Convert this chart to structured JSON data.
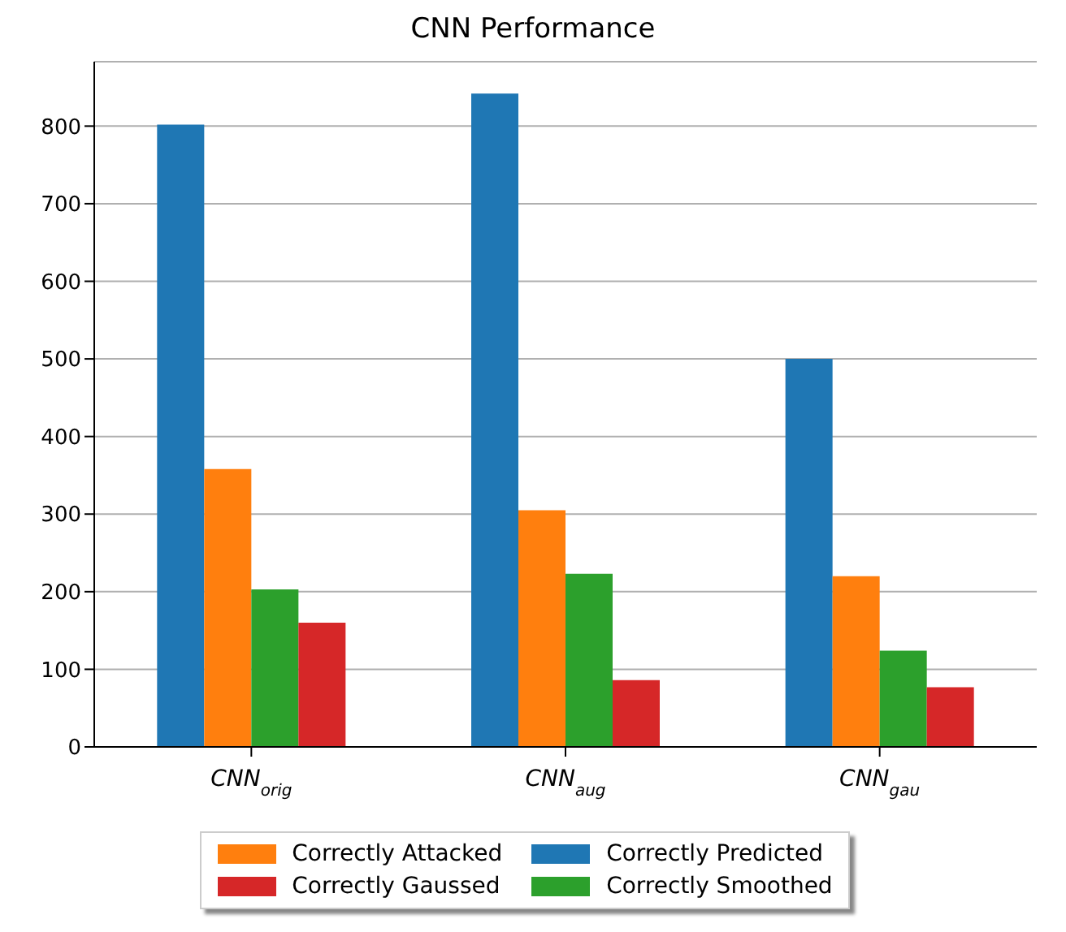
{
  "chart_data": {
    "type": "bar",
    "title": "CNN Performance",
    "categories": [
      "CNN$_{orig}$",
      "CNN$_{aug}$",
      "CNN$_{gau}$"
    ],
    "series": [
      {
        "name": "Correctly Predicted",
        "color": "#1f77b4",
        "values": [
          802,
          842,
          500
        ]
      },
      {
        "name": "Correctly Attacked",
        "color": "#ff7f0e",
        "values": [
          358,
          305,
          220
        ]
      },
      {
        "name": "Correctly Smoothed",
        "color": "#2ca02c",
        "values": [
          203,
          223,
          124
        ]
      },
      {
        "name": "Correctly Gaussed",
        "color": "#d62728",
        "values": [
          160,
          86,
          77
        ]
      }
    ],
    "ylim": [
      0,
      883
    ],
    "yticks": [
      0,
      100,
      200,
      300,
      400,
      500,
      600,
      700,
      800
    ],
    "grid": "y",
    "legend": "bottom"
  }
}
